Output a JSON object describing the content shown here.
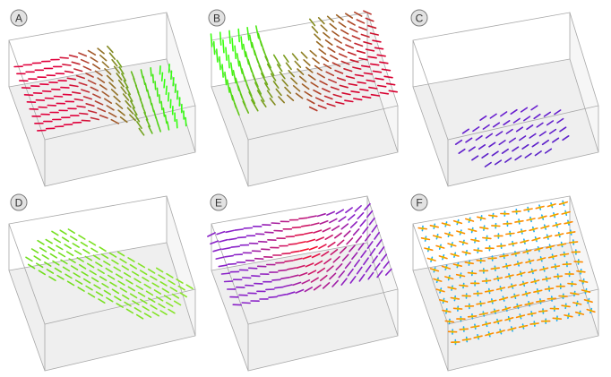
{
  "figure": {
    "panels": [
      {
        "id": "A",
        "label": "A",
        "pattern": "bend",
        "colors": [
          "#e0003c",
          "#34ff10"
        ]
      },
      {
        "id": "B",
        "label": "B",
        "pattern": "arc",
        "colors": [
          "#3cff10",
          "#d80030"
        ]
      },
      {
        "id": "C",
        "label": "C",
        "pattern": "blob",
        "colors": [
          "#7a1cd8",
          "#5a20c8"
        ]
      },
      {
        "id": "D",
        "label": "D",
        "pattern": "band",
        "colors": [
          "#6edc1c",
          "#8ae62a"
        ]
      },
      {
        "id": "E",
        "label": "E",
        "pattern": "wave",
        "colors": [
          "#8a22c8",
          "#ff1020"
        ]
      },
      {
        "id": "F",
        "label": "F",
        "pattern": "crosses",
        "colors": [
          "#ff8a00",
          "#18a8ff",
          "#d8c000"
        ]
      }
    ]
  }
}
